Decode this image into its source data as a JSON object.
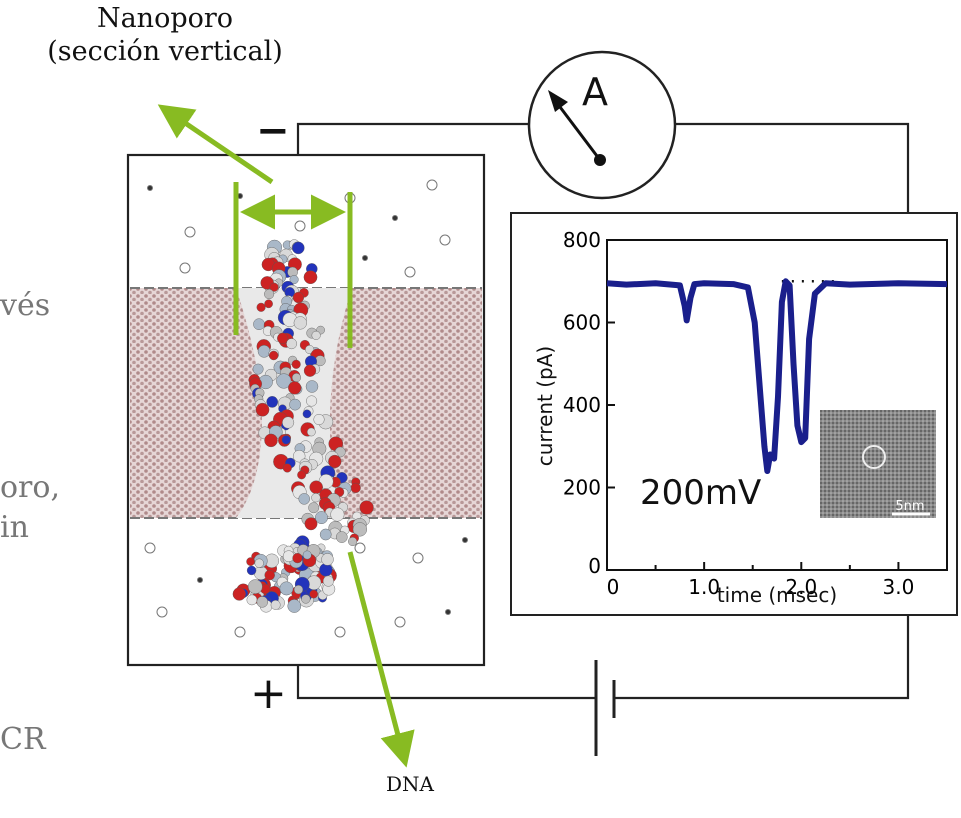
{
  "labels": {
    "nanopore_line1": "Nanoporo",
    "nanopore_line2": "(sección vertical)",
    "dna": "DNA",
    "ammeter": "A",
    "minus": "−",
    "plus": "+",
    "voltage": "200mV",
    "scale_bar": "5nm"
  },
  "slide_fragments": [
    "vés",
    "oro,",
    "in",
    "CR"
  ],
  "colors": {
    "arrow_green": "#88bb22",
    "trace_blue": "#1a1f8c",
    "atom_red": "#cc2222",
    "atom_blue": "#2233bb",
    "membrane": "#c9a9a9"
  },
  "chart_data": {
    "type": "line",
    "xlabel": "time (msec)",
    "ylabel": "current (pA)",
    "xlim": [
      0,
      3.5
    ],
    "ylim": [
      0,
      800
    ],
    "xticks": [
      0,
      1.0,
      2.0,
      3.0
    ],
    "xtick_labels": [
      "0",
      "1.0",
      "2.0",
      "3.0"
    ],
    "yticks": [
      0,
      200,
      400,
      600,
      800
    ],
    "ytick_labels": [
      "0",
      "200",
      "400",
      "600",
      "800"
    ],
    "baseline": 700,
    "series": [
      {
        "x": [
          0,
          0.2,
          0.5,
          0.75,
          0.8,
          0.82,
          0.86,
          0.9,
          1.0,
          1.3,
          1.45,
          1.52,
          1.58,
          1.62,
          1.65,
          1.68,
          1.72,
          1.76,
          1.8,
          1.84,
          1.88,
          1.92,
          1.96,
          2.0,
          2.04,
          2.08,
          2.14,
          2.25,
          2.5,
          3.0,
          3.5
        ],
        "y": [
          695,
          692,
          695,
          690,
          640,
          605,
          660,
          693,
          695,
          693,
          685,
          600,
          420,
          300,
          240,
          280,
          270,
          420,
          650,
          700,
          690,
          500,
          350,
          310,
          320,
          560,
          670,
          695,
          692,
          695,
          693
        ]
      }
    ]
  }
}
